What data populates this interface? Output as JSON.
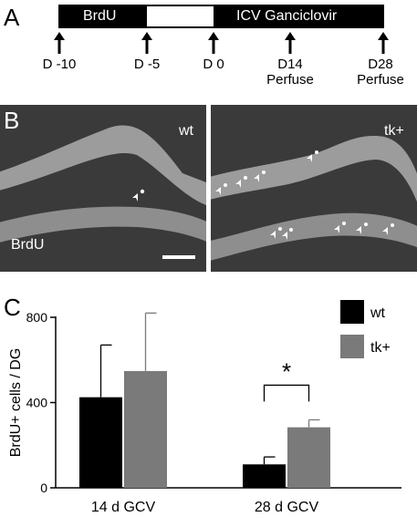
{
  "panel_a": {
    "letter": "A",
    "bar_brdu": "BrdU",
    "bar_icv": "ICV Ganciclovir",
    "timepoints": [
      {
        "line1": "D -10",
        "line2": ""
      },
      {
        "line1": "D -5",
        "line2": ""
      },
      {
        "line1": "D 0",
        "line2": ""
      },
      {
        "line1": "D14",
        "line2": "Perfuse"
      },
      {
        "line1": "D28",
        "line2": "Perfuse"
      }
    ]
  },
  "panel_b": {
    "letter": "B",
    "left_genotype": "wt",
    "right_genotype": "tk+",
    "stain_label": "BrdU"
  },
  "panel_c": {
    "letter": "C",
    "significance": "*"
  },
  "colors": {
    "wt": "#000000",
    "tk": "#7a7a7a",
    "tissue": "#3a3a3a",
    "granule_layer": "#9c9c9c"
  },
  "chart_data": {
    "type": "bar",
    "ylabel": "BrdU+ cells / DG",
    "xlabel": "",
    "categories": [
      "14 d GCV",
      "28 d GCV"
    ],
    "ylim": [
      0,
      800
    ],
    "yticks": [
      0,
      400,
      800
    ],
    "legend_position": "top-right",
    "series": [
      {
        "name": "wt",
        "values": [
          425,
          110
        ],
        "error": [
          245,
          35
        ],
        "color": "#000000"
      },
      {
        "name": "tk+",
        "values": [
          548,
          284
        ],
        "error": [
          272,
          35
        ],
        "color": "#7a7a7a"
      }
    ],
    "annotations": [
      {
        "text": "*",
        "between": [
          "wt",
          "tk+"
        ],
        "category": "28 d GCV"
      }
    ]
  }
}
